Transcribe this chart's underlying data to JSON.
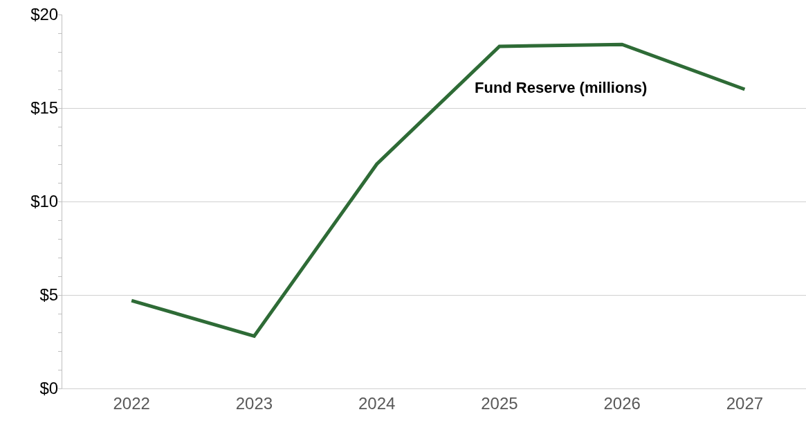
{
  "chart_data": {
    "type": "line",
    "categories": [
      "2022",
      "2023",
      "2024",
      "2025",
      "2026",
      "2027"
    ],
    "series": [
      {
        "name": "Fund Reserve (millions)",
        "color": "#2e6b36",
        "values": [
          4.7,
          2.8,
          12.0,
          18.3,
          18.4,
          16.0
        ]
      }
    ],
    "ylim": [
      0,
      20
    ],
    "yticks": [
      {
        "value": 0,
        "label": "$0"
      },
      {
        "value": 5,
        "label": "$5"
      },
      {
        "value": 10,
        "label": "$10"
      },
      {
        "value": 15,
        "label": "$15"
      },
      {
        "value": 20,
        "label": "$20"
      }
    ],
    "grid": "y",
    "legend": false,
    "marker": "none",
    "line_style": "solid"
  }
}
